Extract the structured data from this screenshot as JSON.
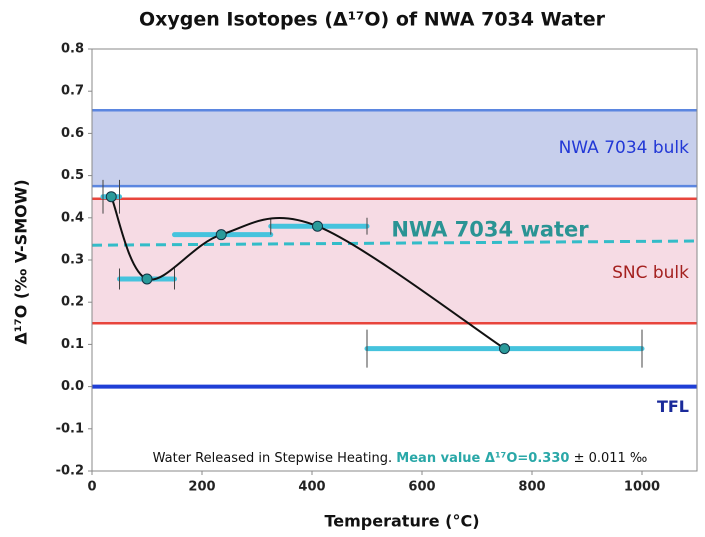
{
  "chart_data": {
    "type": "line",
    "title": "Oxygen Isotopes (Δ¹⁷O) of NWA 7034 Water",
    "xlabel": "Temperature (°C)",
    "ylabel": "Δ¹⁷O (‰ V-SMOW)",
    "xlim": [
      0,
      1100
    ],
    "ylim": [
      -0.2,
      0.8
    ],
    "xticks": [
      0,
      200,
      400,
      600,
      800,
      1000
    ],
    "yticks": [
      -0.2,
      -0.1,
      {
        "value": 0,
        "label": "0.0"
      },
      0.1,
      0.2,
      0.3,
      0.4,
      0.5,
      0.6,
      0.7,
      0.8
    ],
    "bands": [
      {
        "name": "NWA 7034 bulk",
        "range": [
          0.475,
          0.655
        ],
        "fill": "#c7cfec",
        "edge": "#5b86e0",
        "label_color": "#2238d6"
      },
      {
        "name": "SNC bulk",
        "range": [
          0.15,
          0.445
        ],
        "fill": "#f6dbe4",
        "edge": "#e8453c",
        "label_color": "#a4211f"
      }
    ],
    "lines": [
      {
        "name": "NWA 7034 water",
        "x": [
          0,
          1100
        ],
        "y": [
          0.335,
          0.345
        ],
        "color": "#33bcc8",
        "label_color": "#2a9494",
        "dashed": true
      },
      {
        "name": "TFL",
        "x": [
          0,
          1100
        ],
        "y": [
          0,
          0
        ],
        "color": "#1f3fd6",
        "label_color": "#1a2a9a",
        "dashed": false
      }
    ],
    "series": [
      {
        "x": [
          35,
          100,
          235,
          410,
          750
        ],
        "y": [
          0.45,
          0.255,
          0.36,
          0.38,
          0.09
        ],
        "x_ranges": [
          [
            20,
            50
          ],
          [
            50,
            150
          ],
          [
            150,
            325
          ],
          [
            325,
            500
          ],
          [
            500,
            1000
          ]
        ],
        "y_errors": [
          0.04,
          0.025,
          0,
          0.02,
          0.045
        ],
        "color": "#2a9a9a",
        "range_color": "#45c3dd"
      }
    ],
    "annotation": [
      "Water Released in Stepwise Heating.",
      "Mean value Δ¹⁷O=0.330",
      "± 0.011 ‰"
    ]
  }
}
